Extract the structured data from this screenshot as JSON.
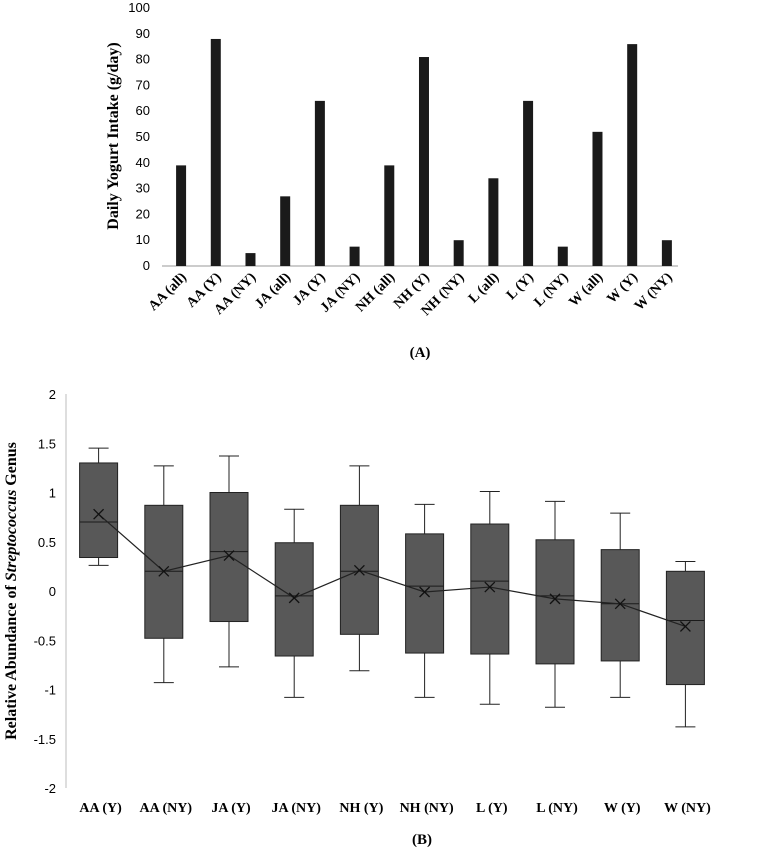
{
  "chart_data": [
    {
      "type": "bar",
      "panel_label": "(A)",
      "ylabel": "Daily Yogurt Intake (g/day)",
      "ylim": [
        0,
        100
      ],
      "yticks": [
        0,
        10,
        20,
        30,
        40,
        50,
        60,
        70,
        80,
        90,
        100
      ],
      "categories": [
        "AA  (all)",
        "AA (Y)",
        "AA (NY)",
        "JA (all)",
        "JA (Y)",
        "JA (NY)",
        "NH (all)",
        "NH (Y)",
        "NH (NY)",
        "L (all)",
        "L (Y)",
        "L (NY)",
        "W (all)",
        "W (Y)",
        "W (NY)"
      ],
      "values": [
        39,
        88,
        5,
        27,
        64,
        7.5,
        39,
        81,
        10,
        34,
        64,
        7.5,
        52,
        86,
        10
      ],
      "colors": {
        "bar": "#1a1a1a",
        "axis": "#999999"
      }
    },
    {
      "type": "box",
      "panel_label": "(B)",
      "ylabel_prefix": "Relative Abundance of ",
      "ylabel_italic": "Streptococcus",
      "ylabel_suffix": " Genus",
      "ylim": [
        -2,
        2
      ],
      "yticks": [
        "2",
        "1.5",
        "1",
        "0.5",
        "0",
        "-0.5",
        "-1",
        "-1.5",
        "-2"
      ],
      "ytick_values": [
        2,
        1.5,
        1,
        0.5,
        0,
        -0.5,
        -1,
        -1.5,
        -2
      ],
      "categories": [
        "AA (Y)",
        "AA (NY)",
        "JA (Y)",
        "JA (NY)",
        "NH (Y)",
        "NH (NY)",
        "L (Y)",
        "L (NY)",
        "W (Y)",
        "W (NY)"
      ],
      "boxes": [
        {
          "min": 0.26,
          "q1": 0.34,
          "median": 0.7,
          "q3": 1.3,
          "max": 1.45,
          "mean": 0.78
        },
        {
          "min": -0.93,
          "q1": -0.48,
          "median": 0.2,
          "q3": 0.87,
          "max": 1.27,
          "mean": 0.2
        },
        {
          "min": -0.77,
          "q1": -0.31,
          "median": 0.4,
          "q3": 1.0,
          "max": 1.37,
          "mean": 0.36
        },
        {
          "min": -1.08,
          "q1": -0.66,
          "median": -0.05,
          "q3": 0.49,
          "max": 0.83,
          "mean": -0.07
        },
        {
          "min": -0.81,
          "q1": -0.44,
          "median": 0.2,
          "q3": 0.87,
          "max": 1.27,
          "mean": 0.21
        },
        {
          "min": -1.08,
          "q1": -0.63,
          "median": 0.05,
          "q3": 0.58,
          "max": 0.88,
          "mean": -0.01
        },
        {
          "min": -1.15,
          "q1": -0.64,
          "median": 0.1,
          "q3": 0.68,
          "max": 1.01,
          "mean": 0.04
        },
        {
          "min": -1.18,
          "q1": -0.74,
          "median": -0.05,
          "q3": 0.52,
          "max": 0.91,
          "mean": -0.08
        },
        {
          "min": -1.08,
          "q1": -0.71,
          "median": -0.13,
          "q3": 0.42,
          "max": 0.79,
          "mean": -0.13
        },
        {
          "min": -1.38,
          "q1": -0.95,
          "median": -0.3,
          "q3": 0.2,
          "max": 0.3,
          "mean": -0.36
        }
      ],
      "colors": {
        "box": "#585858",
        "outline": "#222222",
        "line": "#222222",
        "axis": "#bdbdbd"
      }
    }
  ]
}
